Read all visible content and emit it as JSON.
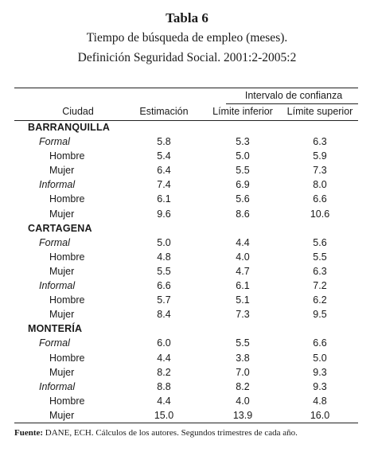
{
  "title": {
    "line1": "Tabla 6",
    "line2": "Tiempo de búsqueda de empleo (meses).",
    "line3": "Definición Seguridad Social. 2001:2-2005:2"
  },
  "table": {
    "ci_header": "Intervalo de confianza",
    "headers": [
      "Ciudad",
      "Estimación",
      "Límite inferior",
      "Límite superior"
    ],
    "rows": [
      {
        "kind": "city",
        "label": "BARRANQUILLA",
        "v": [
          "",
          "",
          ""
        ]
      },
      {
        "kind": "type",
        "label": "Formal",
        "v": [
          "5.8",
          "5.3",
          "6.3"
        ]
      },
      {
        "kind": "sex",
        "label": "Hombre",
        "v": [
          "5.4",
          "5.0",
          "5.9"
        ]
      },
      {
        "kind": "sex",
        "label": "Mujer",
        "v": [
          "6.4",
          "5.5",
          "7.3"
        ]
      },
      {
        "kind": "type",
        "label": "Informal",
        "v": [
          "7.4",
          "6.9",
          "8.0"
        ]
      },
      {
        "kind": "sex",
        "label": "Hombre",
        "v": [
          "6.1",
          "5.6",
          "6.6"
        ]
      },
      {
        "kind": "sex",
        "label": "Mujer",
        "v": [
          "9.6",
          "8.6",
          "10.6"
        ]
      },
      {
        "kind": "city",
        "label": "CARTAGENA",
        "v": [
          "",
          "",
          ""
        ]
      },
      {
        "kind": "type",
        "label": "Formal",
        "v": [
          "5.0",
          "4.4",
          "5.6"
        ]
      },
      {
        "kind": "sex",
        "label": "Hombre",
        "v": [
          "4.8",
          "4.0",
          "5.5"
        ]
      },
      {
        "kind": "sex",
        "label": "Mujer",
        "v": [
          "5.5",
          "4.7",
          "6.3"
        ]
      },
      {
        "kind": "type",
        "label": "Informal",
        "v": [
          "6.6",
          "6.1",
          "7.2"
        ]
      },
      {
        "kind": "sex",
        "label": "Hombre",
        "v": [
          "5.7",
          "5.1",
          "6.2"
        ]
      },
      {
        "kind": "sex",
        "label": "Mujer",
        "v": [
          "8.4",
          "7.3",
          "9.5"
        ]
      },
      {
        "kind": "city",
        "label": "MONTERÍA",
        "v": [
          "",
          "",
          ""
        ]
      },
      {
        "kind": "type",
        "label": "Formal",
        "v": [
          "6.0",
          "5.5",
          "6.6"
        ]
      },
      {
        "kind": "sex",
        "label": "Hombre",
        "v": [
          "4.4",
          "3.8",
          "5.0"
        ]
      },
      {
        "kind": "sex",
        "label": "Mujer",
        "v": [
          "8.2",
          "7.0",
          "9.3"
        ]
      },
      {
        "kind": "type",
        "label": "Informal",
        "v": [
          "8.8",
          "8.2",
          "9.3"
        ]
      },
      {
        "kind": "sex",
        "label": "Hombre",
        "v": [
          "4.4",
          "4.0",
          "4.8"
        ]
      },
      {
        "kind": "sex",
        "label": "Mujer",
        "v": [
          "15.0",
          "13.9",
          "16.0"
        ]
      }
    ]
  },
  "source": {
    "label": "Fuente:",
    "text": "DANE, ECH. Cálculos de los autores. Segundos trimestres de cada año."
  }
}
